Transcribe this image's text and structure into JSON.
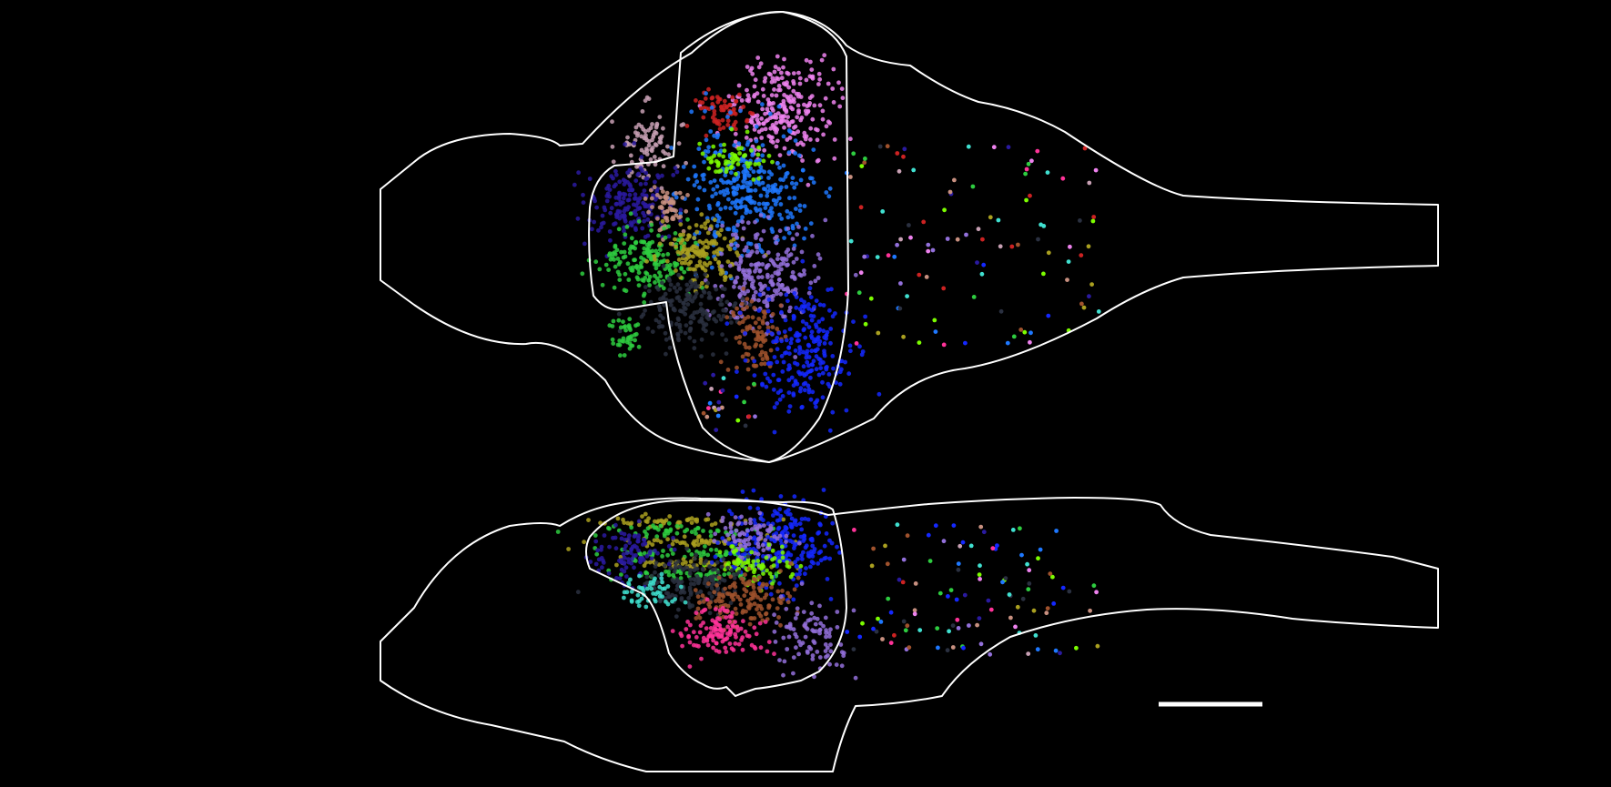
{
  "image": {
    "background": "#000000",
    "outline_color": "#ffffff",
    "panels": [
      {
        "view": "dorsal",
        "label": ""
      },
      {
        "view": "lateral",
        "label": ""
      }
    ],
    "scale_bar": {
      "label": ""
    },
    "cluster_palette": [
      "#ee82ee",
      "#cc2222",
      "#c8a0b4",
      "#1e78ff",
      "#2a1aa0",
      "#c89080",
      "#2ecc40",
      "#aaa020",
      "#9370db",
      "#2a3040",
      "#a0522d",
      "#1428ff",
      "#7cfc00",
      "#ff3399",
      "#40e0d0"
    ]
  }
}
